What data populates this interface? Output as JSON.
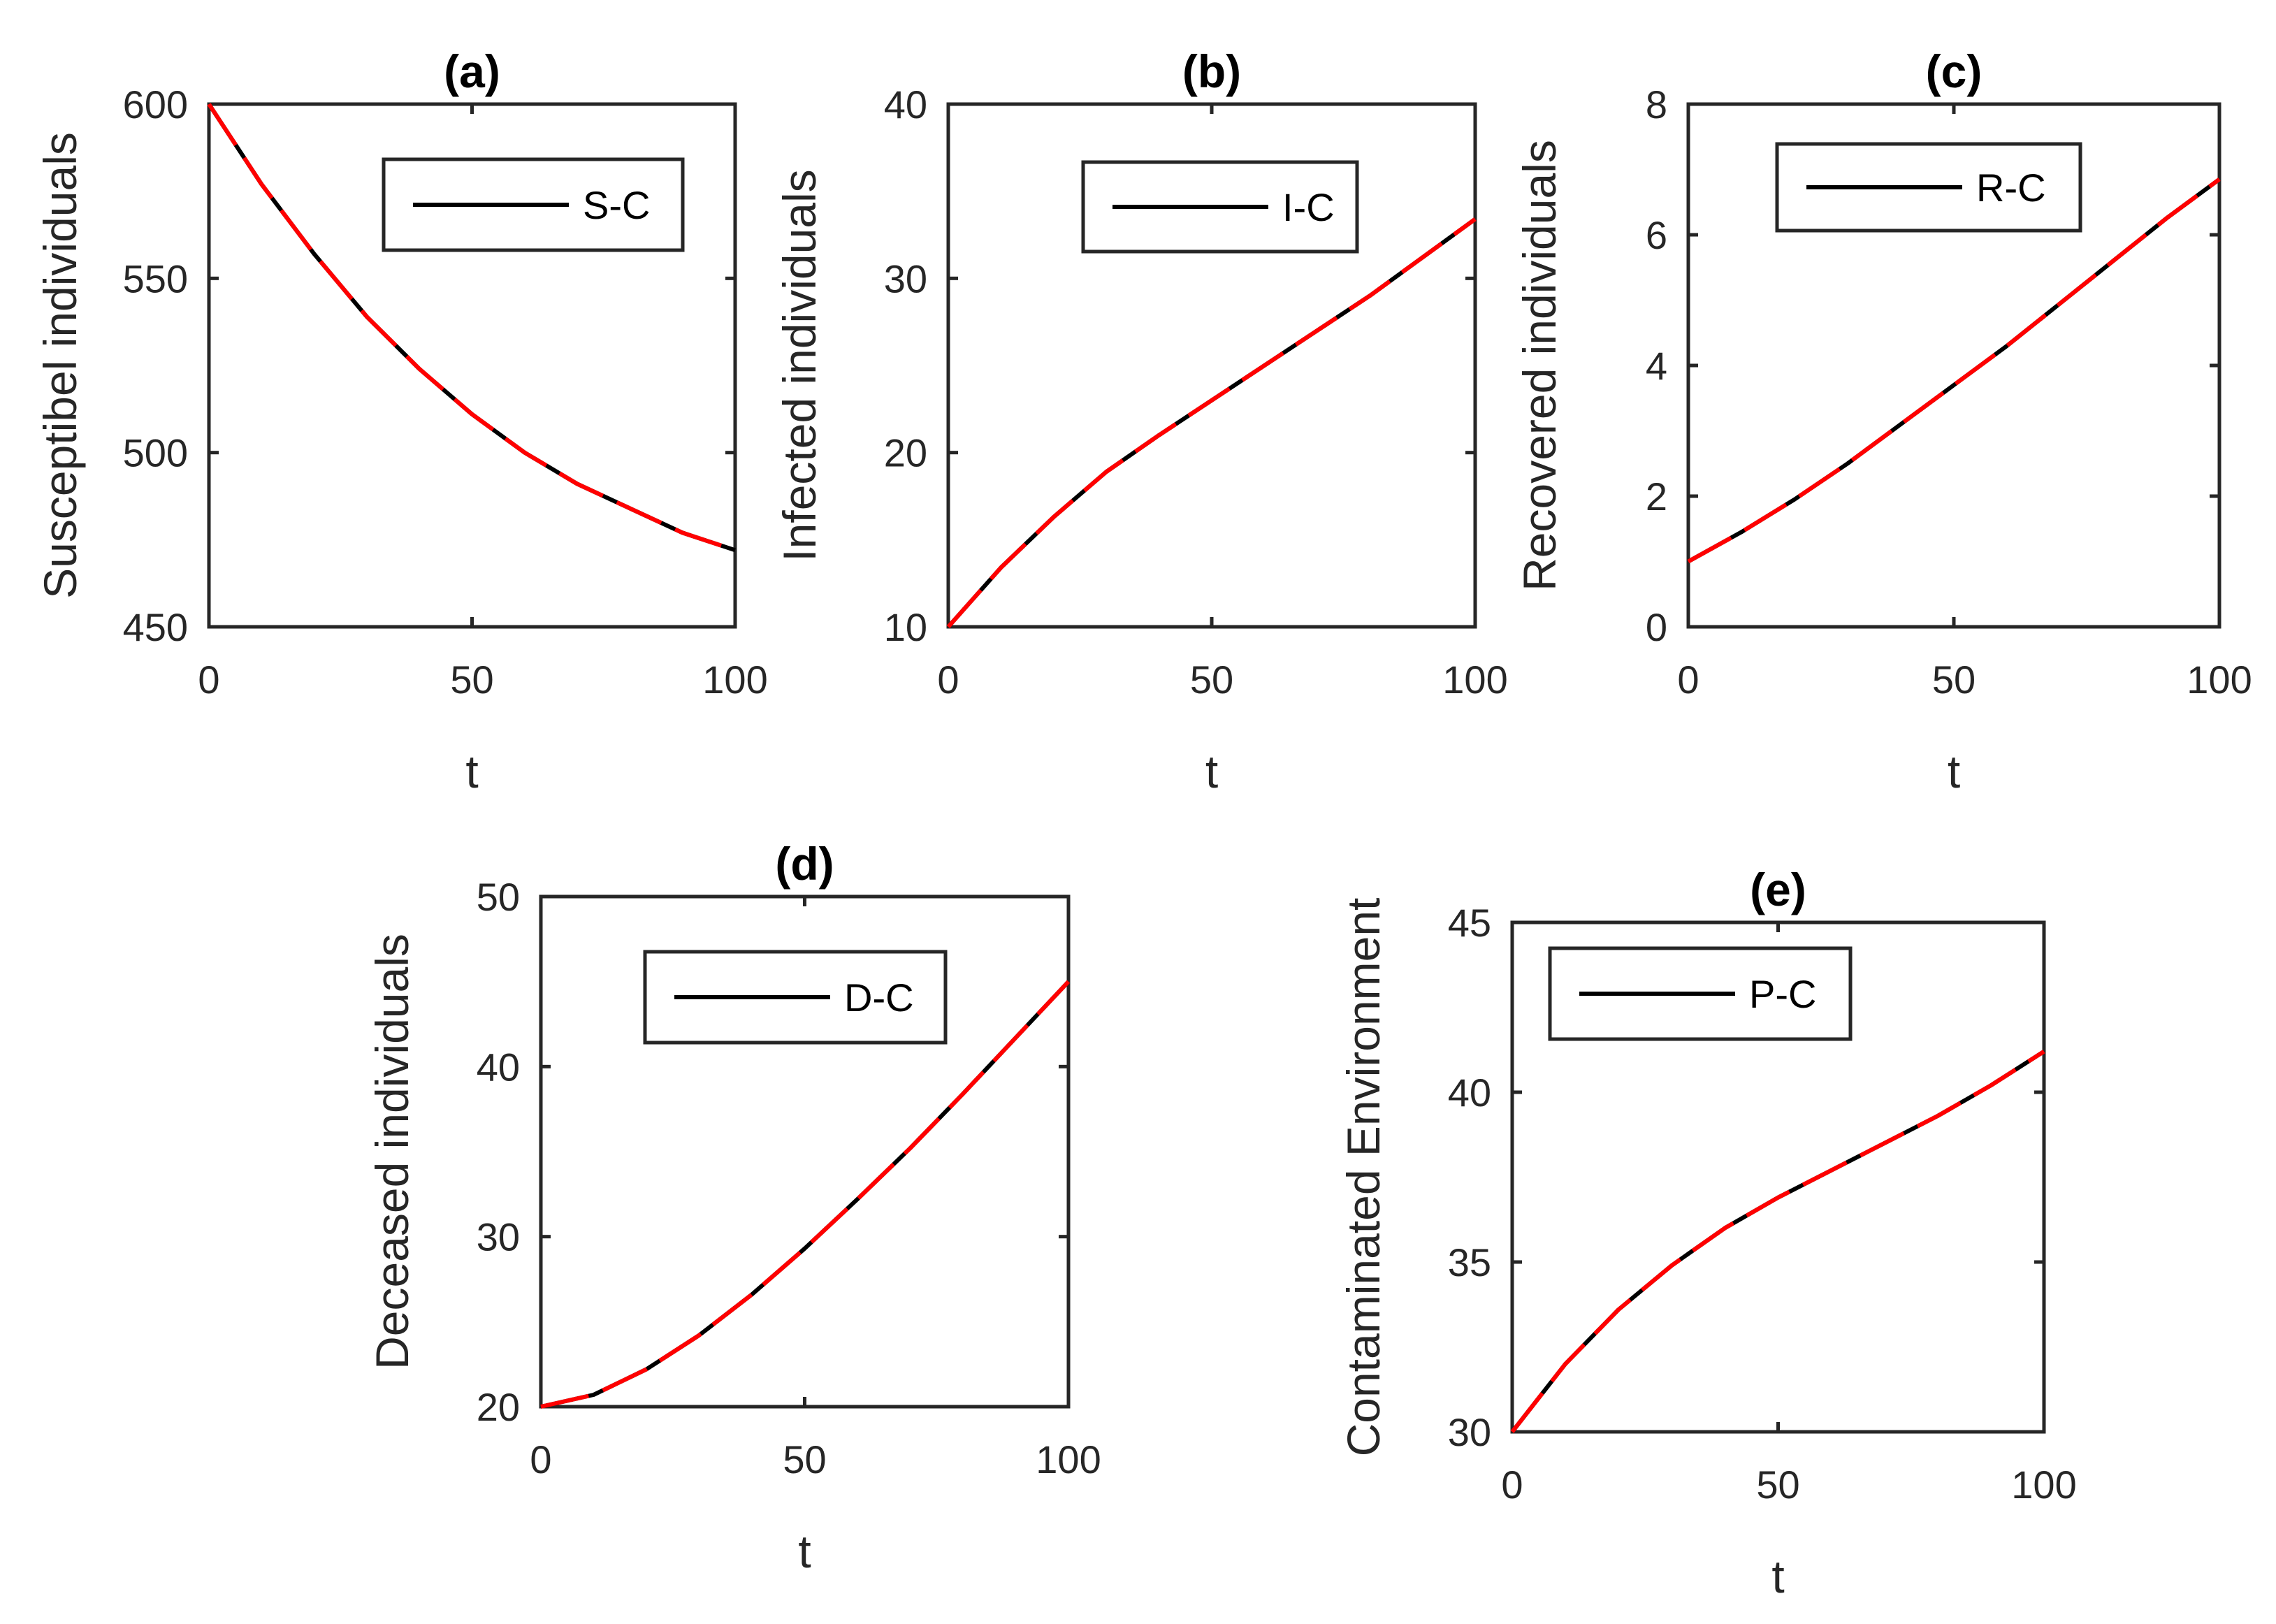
{
  "figure": {
    "colors": {
      "series_black": "#000000",
      "series_red": "#ff0000",
      "axis": "#262626",
      "background": "#ffffff"
    }
  },
  "chart_data": [
    {
      "id": "a",
      "type": "line",
      "title": "(a)",
      "xlabel": "t",
      "ylabel": "Susceptibel individuals",
      "xlim": [
        0,
        100
      ],
      "ylim": [
        450,
        600
      ],
      "xticks": [
        0,
        50,
        100
      ],
      "yticks": [
        450,
        500,
        550,
        600
      ],
      "legend": {
        "entries": [
          "S-C"
        ],
        "position": "top-right"
      },
      "series": [
        {
          "name": "S-C",
          "color": "#000000",
          "style": "solid",
          "x": [
            0,
            10,
            20,
            30,
            40,
            50,
            60,
            70,
            80,
            90,
            100
          ],
          "y": [
            600,
            577,
            557,
            539,
            524,
            511,
            500,
            491,
            484,
            477,
            472
          ]
        },
        {
          "name": "",
          "color": "#ff0000",
          "style": "dashed",
          "x": [
            0,
            10,
            20,
            30,
            40,
            50,
            60,
            70,
            80,
            90,
            100
          ],
          "y": [
            600,
            577,
            557,
            539,
            524,
            511,
            500,
            491,
            484,
            477,
            472
          ]
        }
      ]
    },
    {
      "id": "b",
      "type": "line",
      "title": "(b)",
      "xlabel": "t",
      "ylabel": "Infected individuals",
      "xlim": [
        0,
        100
      ],
      "ylim": [
        10,
        40
      ],
      "xticks": [
        0,
        50,
        100
      ],
      "yticks": [
        10,
        20,
        30,
        40
      ],
      "legend": {
        "entries": [
          "I-C"
        ],
        "position": "top-right"
      },
      "series": [
        {
          "name": "I-C",
          "color": "#000000",
          "style": "solid",
          "x": [
            0,
            10,
            20,
            30,
            40,
            50,
            60,
            70,
            80,
            90,
            100
          ],
          "y": [
            10,
            13.4,
            16.3,
            18.9,
            21.0,
            23.0,
            25.0,
            27.0,
            29.0,
            31.2,
            33.4
          ]
        },
        {
          "name": "",
          "color": "#ff0000",
          "style": "dashed",
          "x": [
            0,
            10,
            20,
            30,
            40,
            50,
            60,
            70,
            80,
            90,
            100
          ],
          "y": [
            10,
            13.4,
            16.3,
            18.9,
            21.0,
            23.0,
            25.0,
            27.0,
            29.0,
            31.2,
            33.4
          ]
        }
      ]
    },
    {
      "id": "c",
      "type": "line",
      "title": "(c)",
      "xlabel": "t",
      "ylabel": "Recovered individuals",
      "xlim": [
        0,
        100
      ],
      "ylim": [
        0,
        8
      ],
      "xticks": [
        0,
        50,
        100
      ],
      "yticks": [
        0,
        2,
        4,
        6,
        8
      ],
      "legend": {
        "entries": [
          "R-C"
        ],
        "position": "top-right"
      },
      "series": [
        {
          "name": "R-C",
          "color": "#000000",
          "style": "solid",
          "x": [
            0,
            10,
            20,
            30,
            40,
            50,
            60,
            70,
            80,
            90,
            100
          ],
          "y": [
            1.0,
            1.45,
            1.95,
            2.5,
            3.1,
            3.7,
            4.3,
            4.95,
            5.6,
            6.25,
            6.85
          ]
        },
        {
          "name": "",
          "color": "#ff0000",
          "style": "dashed",
          "x": [
            0,
            10,
            20,
            30,
            40,
            50,
            60,
            70,
            80,
            90,
            100
          ],
          "y": [
            1.0,
            1.45,
            1.95,
            2.5,
            3.1,
            3.7,
            4.3,
            4.95,
            5.6,
            6.25,
            6.85
          ]
        }
      ]
    },
    {
      "id": "d",
      "type": "line",
      "title": "(d)",
      "xlabel": "t",
      "ylabel": "Deceased individuals",
      "xlim": [
        0,
        100
      ],
      "ylim": [
        20,
        50
      ],
      "xticks": [
        0,
        50,
        100
      ],
      "yticks": [
        20,
        30,
        40,
        50
      ],
      "legend": {
        "entries": [
          "D-C"
        ],
        "position": "top-right"
      },
      "series": [
        {
          "name": "D-C",
          "color": "#000000",
          "style": "solid",
          "x": [
            0,
            10,
            20,
            30,
            40,
            50,
            60,
            70,
            80,
            90,
            100
          ],
          "y": [
            20,
            20.7,
            22.2,
            24.2,
            26.6,
            29.3,
            32.2,
            35.2,
            38.4,
            41.7,
            45.0
          ]
        },
        {
          "name": "",
          "color": "#ff0000",
          "style": "dashed",
          "x": [
            0,
            10,
            20,
            30,
            40,
            50,
            60,
            70,
            80,
            90,
            100
          ],
          "y": [
            20,
            20.7,
            22.2,
            24.2,
            26.6,
            29.3,
            32.2,
            35.2,
            38.4,
            41.7,
            45.0
          ]
        }
      ]
    },
    {
      "id": "e",
      "type": "line",
      "title": "(e)",
      "xlabel": "t",
      "ylabel": "Contaminated Environment",
      "xlim": [
        0,
        100
      ],
      "ylim": [
        30,
        45
      ],
      "xticks": [
        0,
        50,
        100
      ],
      "yticks": [
        30,
        35,
        40,
        45
      ],
      "legend": {
        "entries": [
          "P-C"
        ],
        "position": "top-left"
      },
      "series": [
        {
          "name": "P-C",
          "color": "#000000",
          "style": "solid",
          "x": [
            0,
            10,
            20,
            30,
            40,
            50,
            60,
            70,
            80,
            90,
            100
          ],
          "y": [
            30,
            32.0,
            33.6,
            34.9,
            36.0,
            36.9,
            37.7,
            38.5,
            39.3,
            40.2,
            41.2
          ]
        },
        {
          "name": "",
          "color": "#ff0000",
          "style": "dashed",
          "x": [
            0,
            10,
            20,
            30,
            40,
            50,
            60,
            70,
            80,
            90,
            100
          ],
          "y": [
            30,
            32.0,
            33.6,
            34.9,
            36.0,
            36.9,
            37.7,
            38.5,
            39.3,
            40.2,
            41.2
          ]
        }
      ]
    }
  ]
}
